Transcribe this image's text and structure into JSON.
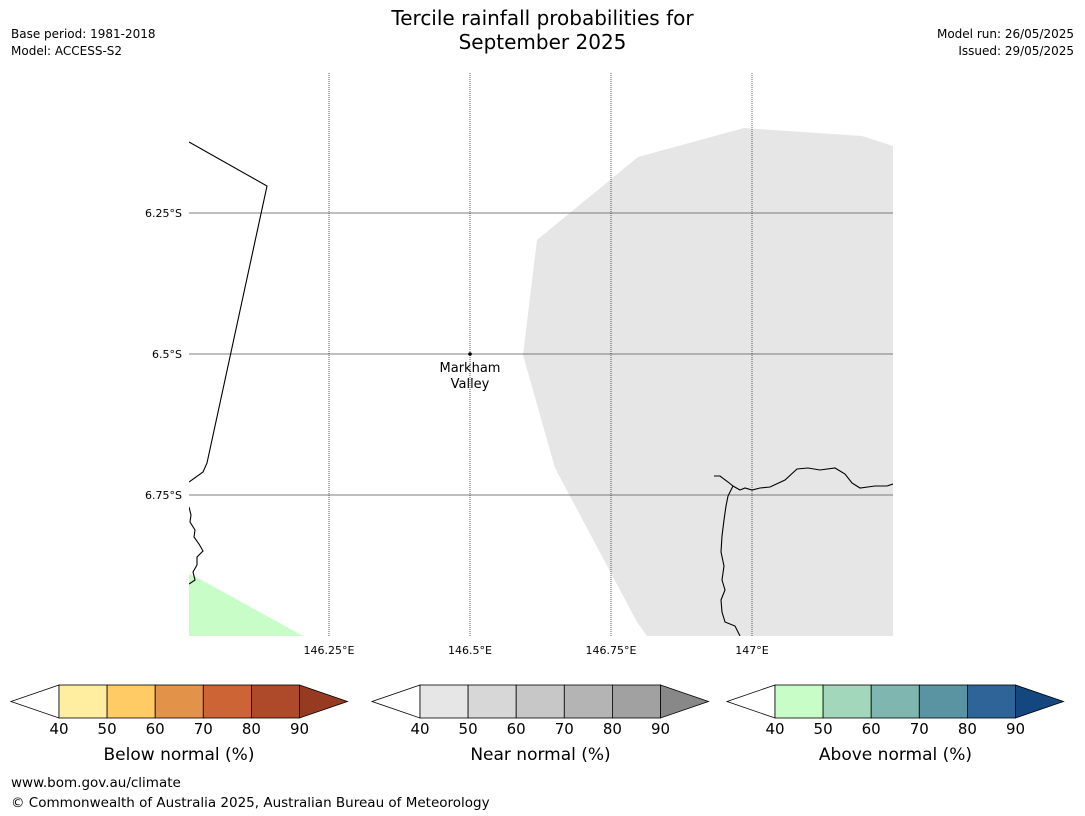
{
  "header": {
    "title_line1": "Tercile rainfall probabilities for",
    "title_line2": "September 2025",
    "base_period": "Base period: 1981-2018",
    "model": "Model: ACCESS-S2",
    "model_run": "Model run: 26/05/2025",
    "issued": "Issued: 29/05/2025"
  },
  "map": {
    "lat_labels": [
      "6.25°S",
      "6.5°S",
      "6.75°S"
    ],
    "lon_labels": [
      "146.25°E",
      "146.5°E",
      "146.75°E",
      "147°E"
    ],
    "location": {
      "name_line1": "Markham",
      "name_line2": "Valley",
      "lat": -6.5,
      "lon": 146.5
    },
    "colors": {
      "near_normal_shade": "#e6e6e6",
      "above_normal_shade": "#c8fdc8",
      "grid": "#555555",
      "coast": "#000000"
    }
  },
  "colorbars": [
    {
      "label": "Below normal (%)",
      "ticks": [
        "40",
        "50",
        "60",
        "70",
        "80",
        "90"
      ],
      "low_extend_color": "#ffffff",
      "colors": [
        "#ffeda0",
        "#fecb64",
        "#e3924a",
        "#cc6436",
        "#ae4a2a"
      ],
      "high_extend_color": "#963a22"
    },
    {
      "label": "Near normal (%)",
      "ticks": [
        "40",
        "50",
        "60",
        "70",
        "80",
        "90"
      ],
      "low_extend_color": "#ffffff",
      "colors": [
        "#e6e6e6",
        "#d7d7d7",
        "#c7c7c7",
        "#b4b4b4",
        "#a1a1a1"
      ],
      "high_extend_color": "#888888"
    },
    {
      "label": "Above normal (%)",
      "ticks": [
        "40",
        "50",
        "60",
        "70",
        "80",
        "90"
      ],
      "low_extend_color": "#ffffff",
      "colors": [
        "#c8fdc8",
        "#a3d7bb",
        "#7fb6b0",
        "#5a93a1",
        "#2e6497"
      ],
      "high_extend_color": "#14467f"
    }
  ],
  "footer": {
    "url": "www.bom.gov.au/climate",
    "copyright": "© Commonwealth of Australia 2025, Australian Bureau of Meteorology"
  }
}
